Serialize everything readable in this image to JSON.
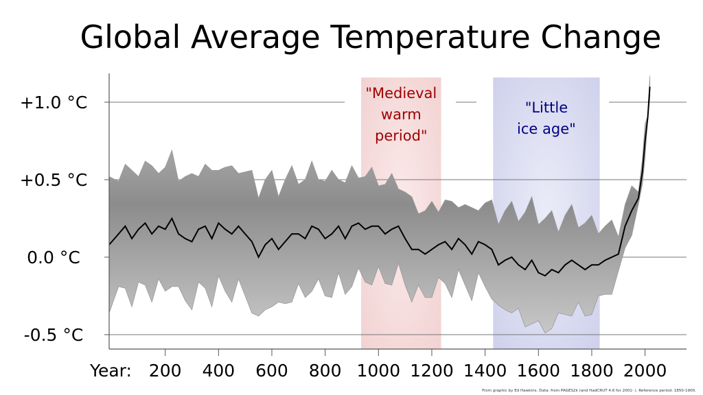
{
  "chart_data": {
    "type": "line",
    "title": "Global Average Temperature Change",
    "xlabel": "Year:",
    "x_ticks": [
      200,
      400,
      600,
      800,
      1000,
      1200,
      1400,
      1600,
      1800,
      2000
    ],
    "y_ticks": [
      {
        "value": 1.0,
        "label": "+1.0 °C"
      },
      {
        "value": 0.5,
        "label": "+0.5 °C"
      },
      {
        "value": 0.0,
        "label": "0.0 °C"
      },
      {
        "value": -0.5,
        "label": "-0.5 °C"
      }
    ],
    "xlim": [
      -10,
      2155
    ],
    "ylim": [
      -0.6,
      1.2
    ],
    "grid": "horizontal",
    "series": [
      {
        "color": "#000000",
        "x": [
          0,
          25,
          50,
          75,
          100,
          125,
          150,
          175,
          200,
          225,
          250,
          275,
          300,
          325,
          350,
          375,
          400,
          425,
          450,
          475,
          500,
          525,
          550,
          575,
          600,
          625,
          650,
          675,
          700,
          725,
          750,
          775,
          800,
          825,
          850,
          875,
          900,
          925,
          950,
          975,
          1000,
          1025,
          1050,
          1075,
          1100,
          1125,
          1150,
          1175,
          1200,
          1225,
          1250,
          1275,
          1300,
          1325,
          1350,
          1375,
          1400,
          1425,
          1450,
          1475,
          1500,
          1525,
          1550,
          1575,
          1600,
          1625,
          1650,
          1675,
          1700,
          1725,
          1750,
          1775,
          1800,
          1825,
          1850,
          1875,
          1900,
          1925,
          1950,
          1975,
          1990,
          2000,
          2010,
          2018
        ],
        "y": [
          0.08,
          0.15,
          0.2,
          0.12,
          0.18,
          0.22,
          0.15,
          0.2,
          0.18,
          0.25,
          0.15,
          0.12,
          0.1,
          0.18,
          0.2,
          0.12,
          0.22,
          0.18,
          0.15,
          0.2,
          0.15,
          0.1,
          0.0,
          0.08,
          0.12,
          0.05,
          0.1,
          0.15,
          0.15,
          0.12,
          0.2,
          0.18,
          0.12,
          0.15,
          0.2,
          0.12,
          0.2,
          0.22,
          0.18,
          0.2,
          0.2,
          0.15,
          0.18,
          0.2,
          0.12,
          0.05,
          0.05,
          0.02,
          0.05,
          0.08,
          0.1,
          0.05,
          0.12,
          0.08,
          0.02,
          0.1,
          0.08,
          0.05,
          -0.05,
          -0.02,
          0.0,
          -0.05,
          -0.08,
          -0.02,
          -0.1,
          -0.12,
          -0.08,
          -0.1,
          -0.05,
          -0.02,
          -0.05,
          -0.08,
          -0.05,
          -0.05,
          -0.02,
          0.0,
          0.02,
          0.2,
          0.3,
          0.38,
          0.55,
          0.75,
          0.9,
          1.1
        ]
      }
    ],
    "uncertainty_band_halfwidth": [
      0.38,
      0.38,
      0.38,
      0.38,
      0.38,
      0.38,
      0.38,
      0.38,
      0.38,
      0.38,
      0.38,
      0.38,
      0.38,
      0.38,
      0.38,
      0.38,
      0.38,
      0.38,
      0.38,
      0.38,
      0.38,
      0.4,
      0.42,
      0.4,
      0.38,
      0.38,
      0.38,
      0.38,
      0.36,
      0.36,
      0.36,
      0.36,
      0.35,
      0.35,
      0.34,
      0.34,
      0.33,
      0.33,
      0.32,
      0.32,
      0.3,
      0.3,
      0.3,
      0.28,
      0.28,
      0.28,
      0.27,
      0.26,
      0.25,
      0.25,
      0.25,
      0.25,
      0.24,
      0.24,
      0.24,
      0.24,
      0.25,
      0.26,
      0.3,
      0.3,
      0.3,
      0.32,
      0.35,
      0.35,
      0.35,
      0.35,
      0.32,
      0.3,
      0.3,
      0.3,
      0.28,
      0.28,
      0.26,
      0.24,
      0.2,
      0.18,
      0.15,
      0.12,
      0.1,
      0.08,
      0.06,
      0.05,
      0.05,
      0.05
    ],
    "annotations": [
      {
        "label": "\"Medieval warm period\"",
        "lines": [
          "\"Medieval",
          "warm",
          "period\""
        ],
        "x_range": [
          935,
          1235
        ],
        "fill": "#f5d5d5",
        "text_color": "#a00000"
      },
      {
        "label": "\"Little ice age\"",
        "lines": [
          "\"Little",
          "ice age\""
        ],
        "x_range": [
          1430,
          1830
        ],
        "fill": "#d3d5ee",
        "text_color": "#000080"
      }
    ],
    "source_note": "From graphic by Ed Hawkins.   Data: from PAGES2k (and HadCRUT 4.6 for 2001- ).   Reference period: 1850-1900."
  }
}
